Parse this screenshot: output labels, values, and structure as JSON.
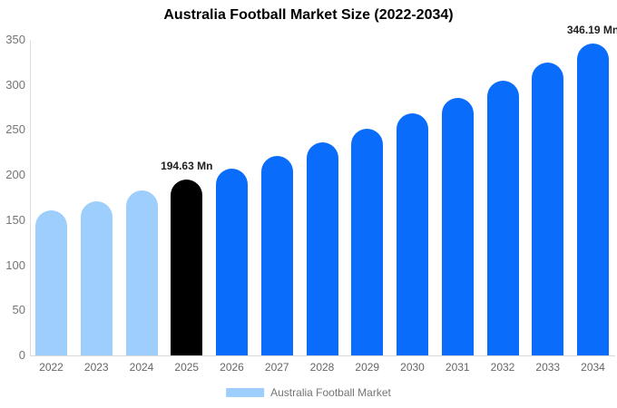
{
  "chart_data": {
    "type": "bar",
    "title": "Australia Football Market Size (2022-2034)",
    "categories": [
      "2022",
      "2023",
      "2024",
      "2025",
      "2026",
      "2027",
      "2028",
      "2029",
      "2030",
      "2031",
      "2032",
      "2033",
      "2034"
    ],
    "values": [
      160.6,
      171.2,
      182.6,
      194.63,
      207.5,
      221.2,
      235.9,
      251.5,
      268.1,
      285.8,
      304.7,
      324.8,
      346.19
    ],
    "ylim": [
      0,
      350
    ],
    "yticks": [
      0,
      50,
      100,
      150,
      200,
      250,
      300,
      350
    ],
    "grid": "off",
    "legend_position": "bottom-center",
    "bar_colors": [
      "#9ECEFC",
      "#9ECEFC",
      "#9ECEFC",
      "#000000",
      "#0A6CFA",
      "#0A6CFA",
      "#0A6CFA",
      "#0A6CFA",
      "#0A6CFA",
      "#0A6CFA",
      "#0A6CFA",
      "#0A6CFA",
      "#0A6CFA"
    ],
    "colors": {
      "light_blue": "#9ECEFC",
      "blue": "#0A6CFA",
      "highlight_black": "#000000",
      "axis_line": "#DCDCDC",
      "tick_text": "#757575",
      "title_text": "#000000"
    },
    "annotations": [
      {
        "category": "2025",
        "index": 3,
        "text": "194.63 Mn"
      },
      {
        "category": "2034",
        "index": 12,
        "text": "346.19 Mn"
      }
    ],
    "legend": {
      "label": "Australia Football Market",
      "swatch_color": "#9ECEFC"
    }
  }
}
